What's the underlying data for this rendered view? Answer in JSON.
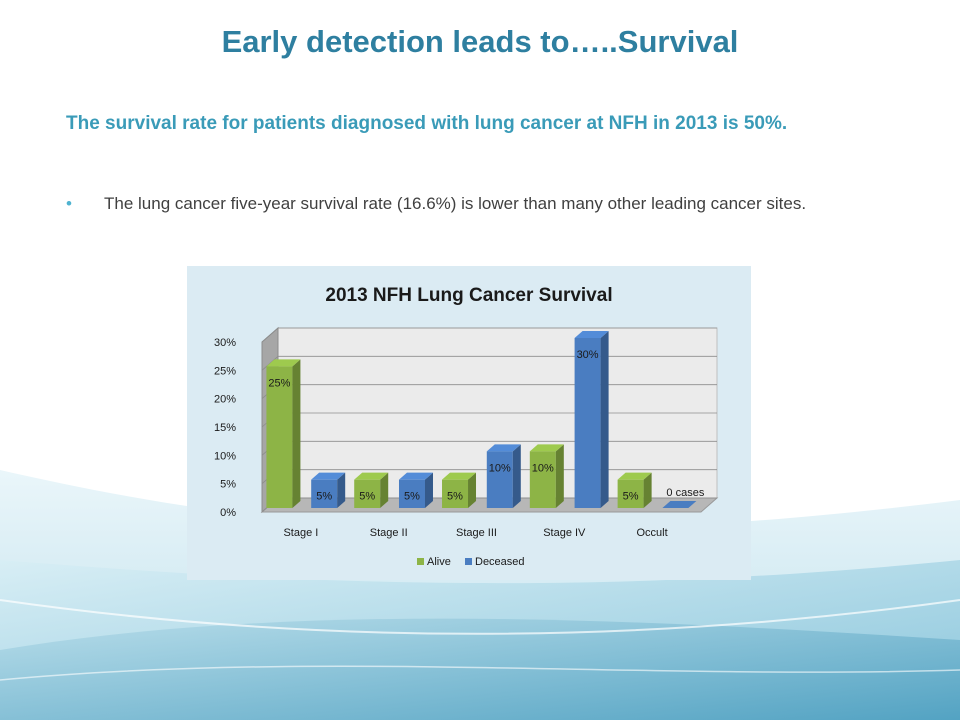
{
  "slide": {
    "title": "Early detection leads to…..Survival",
    "subtitle": "The survival rate for patients diagnosed with lung cancer at NFH in 2013 is 50%.",
    "bullet": "The lung cancer five-year survival rate (16.6%) is lower than many other leading cancer sites."
  },
  "colors": {
    "title": "#2e7fa0",
    "subtitle": "#3a9bb8",
    "alive": "#8db446",
    "deceased": "#4a7dc1",
    "chart_bg": "#dbebf3"
  },
  "chart_data": {
    "type": "bar",
    "title": "2013 NFH Lung Cancer Survival",
    "categories": [
      "Stage I",
      "Stage II",
      "Stage III",
      "Stage IV",
      "Occult"
    ],
    "series": [
      {
        "name": "Alive",
        "values": [
          25,
          5,
          5,
          10,
          5
        ],
        "labels": [
          "25%",
          "5%",
          "5%",
          "10%",
          "5%"
        ]
      },
      {
        "name": "Deceased",
        "values": [
          5,
          5,
          10,
          30,
          0
        ],
        "labels": [
          "5%",
          "5%",
          "10%",
          "30%",
          "0 cases"
        ]
      }
    ],
    "yticks": [
      "0%",
      "5%",
      "10%",
      "15%",
      "20%",
      "25%",
      "30%"
    ],
    "ylim": [
      0,
      30
    ],
    "legend_position": "bottom",
    "grid": true,
    "style": "3d-clustered-column"
  }
}
